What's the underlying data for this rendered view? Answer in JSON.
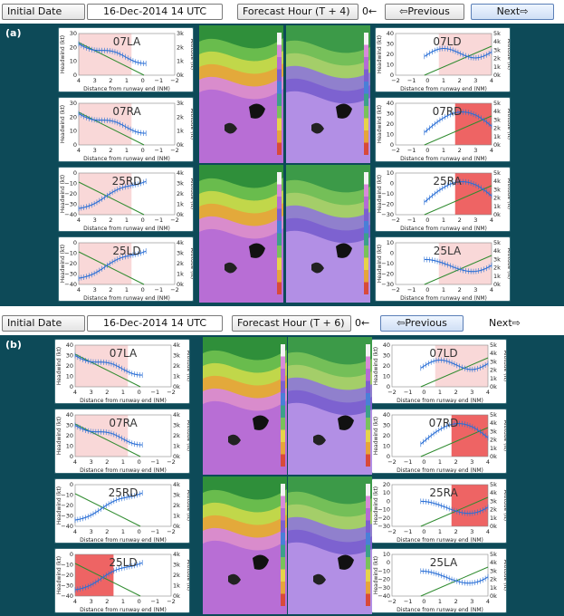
{
  "colors": {
    "panel_bg": "#0d4a58",
    "headwind_line": "#2a6fd6",
    "altitude_line": "#2e8b2e",
    "shade": "#f4b8b8",
    "shade_strong": "#e83030"
  },
  "icons": {
    "next_arrow": "arrow-right-icon",
    "prev_arrow": "arrow-left-icon"
  },
  "panels": [
    {
      "label": "(a)",
      "initial_date_label": "Initial Date",
      "initial_date_value": "16-Dec-2014 14 UTC",
      "forecast_hour_label": "Forecast Hour (T + 4)",
      "hour_value": "0←",
      "prev_label": "⇦Previous",
      "next_label": "Next⇨",
      "x_label": "Distance from runway end (NM)",
      "y_label": "Headwind (kt)",
      "y2_label": "Altitude (ft)",
      "runways_left": [
        {
          "name": "07LA",
          "x_ticks": [
            "4",
            "3",
            "2",
            "1",
            "0",
            "−1",
            "−2"
          ],
          "y_ticks": [
            "30",
            "20",
            "10",
            "0"
          ],
          "alt_ticks": [
            "3k",
            "2k",
            "1k",
            "0k"
          ],
          "shade": "light",
          "shape": "down"
        },
        {
          "name": "07RA",
          "x_ticks": [
            "4",
            "3",
            "2",
            "1",
            "0",
            "−1",
            "−2"
          ],
          "y_ticks": [
            "30",
            "20",
            "10",
            "0"
          ],
          "alt_ticks": [
            "3k",
            "2k",
            "1k",
            "0k"
          ],
          "shade": "light",
          "shape": "down"
        },
        {
          "name": "25RD",
          "x_ticks": [
            "4",
            "3",
            "2",
            "1",
            "0",
            "−1",
            "−2"
          ],
          "y_ticks": [
            "0",
            "−10",
            "−20",
            "−30",
            "−40"
          ],
          "alt_ticks": [
            "4k",
            "3k",
            "2k",
            "1k",
            "0k"
          ],
          "shade": "medium",
          "shape": "up"
        },
        {
          "name": "25LD",
          "x_ticks": [
            "4",
            "3",
            "2",
            "1",
            "0",
            "−1",
            "−2"
          ],
          "y_ticks": [
            "0",
            "−10",
            "−20",
            "−30",
            "−40"
          ],
          "alt_ticks": [
            "4k",
            "3k",
            "2k",
            "1k",
            "0k"
          ],
          "shade": "medium",
          "shape": "up"
        }
      ],
      "runways_right": [
        {
          "name": "07LD",
          "x_ticks": [
            "−2",
            "−1",
            "0",
            "1",
            "2",
            "3",
            "4"
          ],
          "y_ticks": [
            "40",
            "30",
            "20",
            "10",
            "0"
          ],
          "alt_ticks": [
            "5k",
            "4k",
            "3k",
            "2k",
            "1k",
            "0k"
          ],
          "shade": "light",
          "shape": "wave"
        },
        {
          "name": "07RD",
          "x_ticks": [
            "−2",
            "−1",
            "0",
            "1",
            "2",
            "3",
            "4"
          ],
          "y_ticks": [
            "40",
            "30",
            "20",
            "10",
            "0"
          ],
          "alt_ticks": [
            "5k",
            "4k",
            "3k",
            "2k",
            "1k",
            "0k"
          ],
          "shade": "strong",
          "shape": "hump"
        },
        {
          "name": "25RA",
          "x_ticks": [
            "−2",
            "−1",
            "0",
            "1",
            "2",
            "3",
            "4"
          ],
          "y_ticks": [
            "10",
            "0",
            "−10",
            "−20",
            "−30"
          ],
          "alt_ticks": [
            "5k",
            "4k",
            "3k",
            "2k",
            "1k",
            "0k"
          ],
          "shade": "strong",
          "shape": "hump"
        },
        {
          "name": "25LA",
          "x_ticks": [
            "−2",
            "−1",
            "0",
            "1",
            "2",
            "3",
            "4"
          ],
          "y_ticks": [
            "10",
            "0",
            "−10",
            "−20",
            "−30"
          ],
          "alt_ticks": [
            "5k",
            "4k",
            "3k",
            "2k",
            "1k",
            "0k"
          ],
          "shade": "medium",
          "shape": "dip"
        }
      ]
    },
    {
      "label": "(b)",
      "initial_date_label": "Initial Date",
      "initial_date_value": "16-Dec-2014 14 UTC",
      "forecast_hour_label": "Forecast Hour (T + 6)",
      "hour_value": "0←",
      "prev_label": "⇦Previous",
      "next_label": "Next⇨",
      "x_label": "Distance from runway end (NM)",
      "y_label": "Headwind (kt)",
      "y2_label": "Altitude (ft)",
      "runways_left": [
        {
          "name": "07LA",
          "x_ticks": [
            "4",
            "3",
            "2",
            "1",
            "0",
            "−1",
            "−2"
          ],
          "y_ticks": [
            "40",
            "30",
            "20",
            "10",
            "0"
          ],
          "alt_ticks": [
            "4k",
            "3k",
            "2k",
            "1k",
            "0k"
          ],
          "shade": "light",
          "shape": "down"
        },
        {
          "name": "07RA",
          "x_ticks": [
            "4",
            "3",
            "2",
            "1",
            "0",
            "−1",
            "−2"
          ],
          "y_ticks": [
            "40",
            "30",
            "20",
            "10",
            "0"
          ],
          "alt_ticks": [
            "4k",
            "3k",
            "2k",
            "1k",
            "0k"
          ],
          "shade": "light",
          "shape": "down"
        },
        {
          "name": "25RD",
          "x_ticks": [
            "4",
            "3",
            "2",
            "1",
            "0",
            "−1",
            "−2"
          ],
          "y_ticks": [
            "0",
            "−10",
            "−20",
            "−30",
            "−40"
          ],
          "alt_ticks": [
            "4k",
            "3k",
            "2k",
            "1k",
            "0k"
          ],
          "shade": "none",
          "shape": "up"
        },
        {
          "name": "25LD",
          "x_ticks": [
            "4",
            "3",
            "2",
            "1",
            "0",
            "−1",
            "−2"
          ],
          "y_ticks": [
            "0",
            "−10",
            "−20",
            "−30",
            "−40"
          ],
          "alt_ticks": [
            "4k",
            "3k",
            "2k",
            "1k",
            "0k"
          ],
          "shade": "strong",
          "shape": "up"
        }
      ],
      "runways_right": [
        {
          "name": "07LD",
          "x_ticks": [
            "−2",
            "−1",
            "0",
            "1",
            "2",
            "3",
            "4"
          ],
          "y_ticks": [
            "40",
            "30",
            "20",
            "10",
            "0"
          ],
          "alt_ticks": [
            "5k",
            "4k",
            "3k",
            "2k",
            "1k",
            "0k"
          ],
          "shade": "light",
          "shape": "wave"
        },
        {
          "name": "07RD",
          "x_ticks": [
            "−2",
            "−1",
            "0",
            "1",
            "2",
            "3",
            "4"
          ],
          "y_ticks": [
            "40",
            "30",
            "20",
            "10",
            "0"
          ],
          "alt_ticks": [
            "5k",
            "4k",
            "3k",
            "2k",
            "1k",
            "0k"
          ],
          "shade": "strong",
          "shape": "hump"
        },
        {
          "name": "25RA",
          "x_ticks": [
            "−2",
            "−1",
            "0",
            "1",
            "2",
            "3",
            "4"
          ],
          "y_ticks": [
            "20",
            "10",
            "0",
            "−10",
            "−20",
            "−30"
          ],
          "alt_ticks": [
            "5k",
            "4k",
            "3k",
            "2k",
            "1k",
            "0k"
          ],
          "shade": "strong",
          "shape": "dip"
        },
        {
          "name": "25LA",
          "x_ticks": [
            "−2",
            "−1",
            "0",
            "1",
            "2",
            "3",
            "4"
          ],
          "y_ticks": [
            "10",
            "0",
            "−10",
            "−20",
            "−30",
            "−40"
          ],
          "alt_ticks": [
            "5k",
            "4k",
            "3k",
            "2k",
            "1k",
            "0k"
          ],
          "shade": "none",
          "shape": "dip"
        }
      ]
    }
  ]
}
